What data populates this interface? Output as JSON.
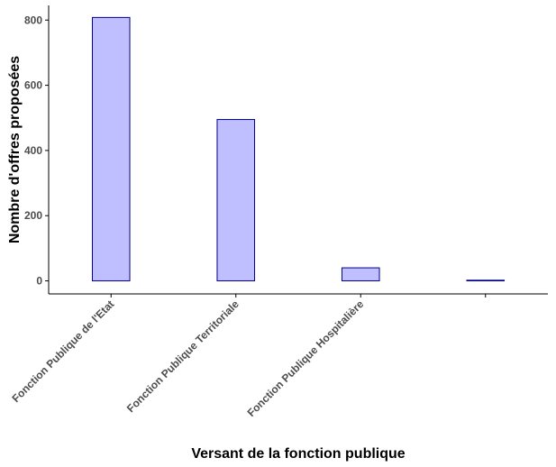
{
  "chart_data": {
    "type": "bar",
    "categories": [
      "Fonction Publique de l'Etat",
      "Fonction Publique Territoriale",
      "Fonction Publique Hospitalière",
      ""
    ],
    "values": [
      808,
      495,
      40,
      2
    ],
    "xlabel": "Versant de la fonction publique",
    "ylabel": "Nombre d'offres proposées",
    "ylim": [
      -40,
      845
    ],
    "yticks": [
      0,
      200,
      400,
      600,
      800
    ],
    "grid": false,
    "legend": "none",
    "bar_fill": "#bfbfff",
    "bar_stroke": "#00008b"
  }
}
